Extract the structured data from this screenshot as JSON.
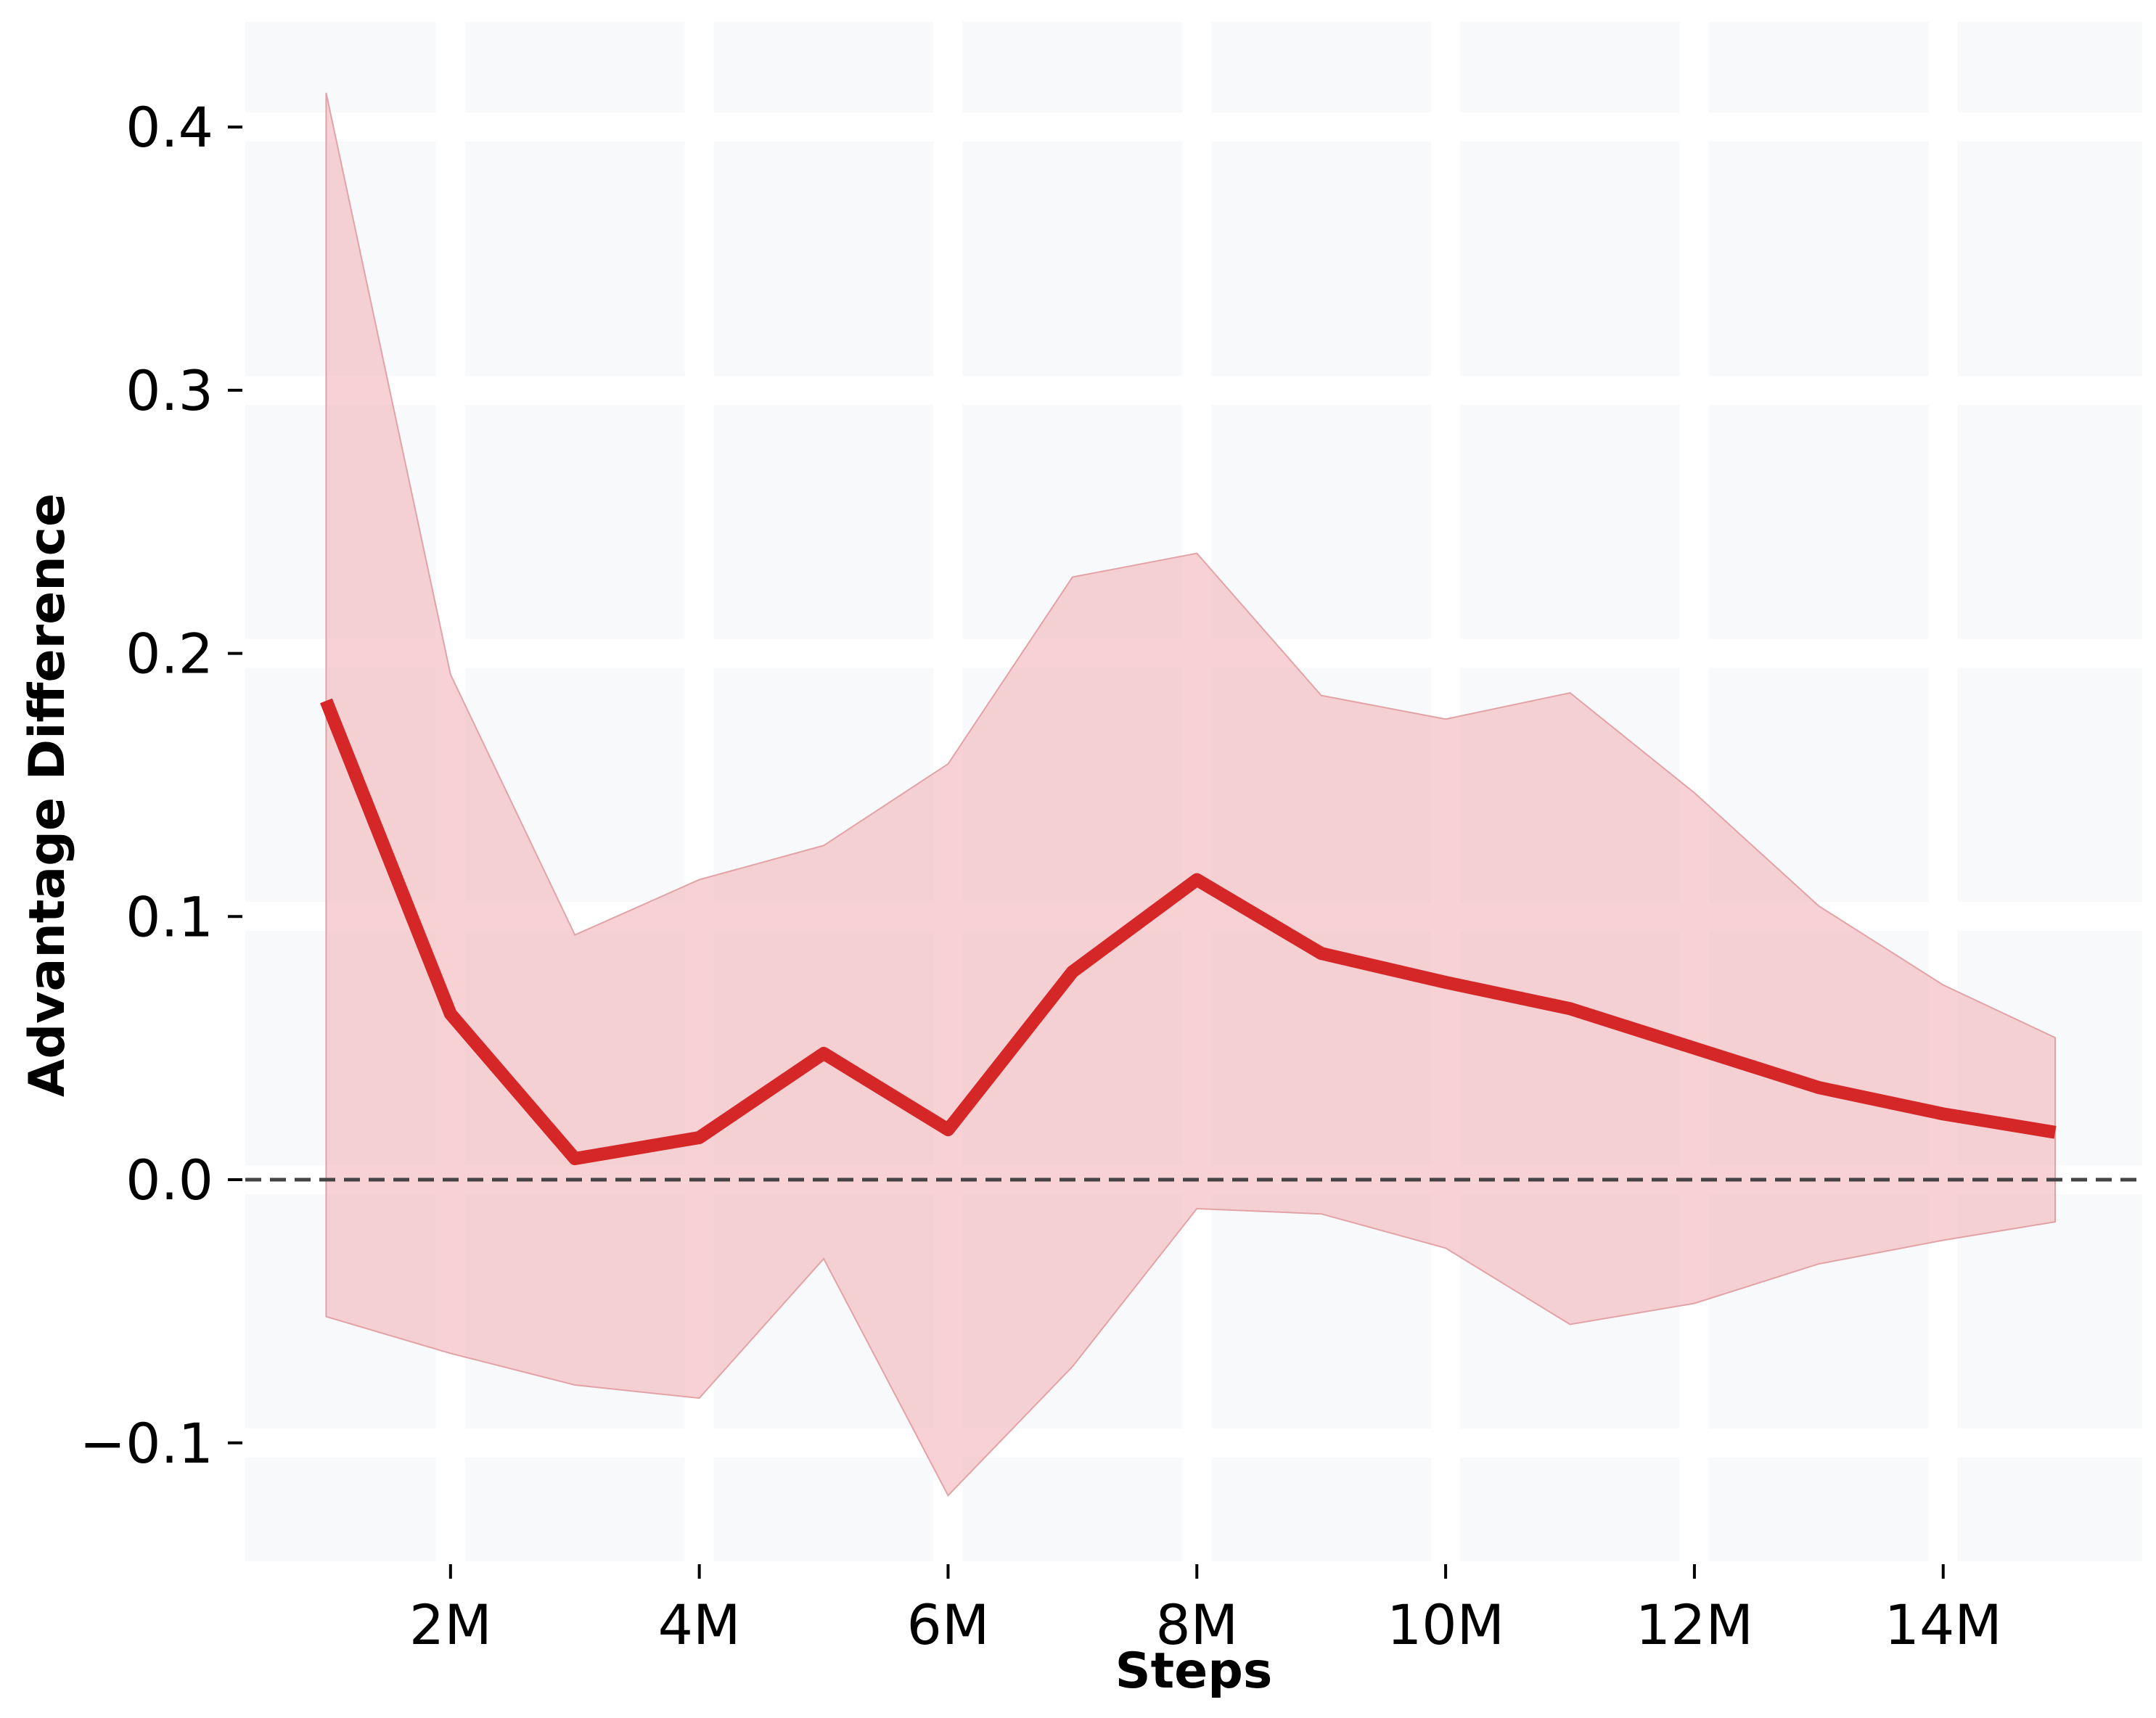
{
  "chart_data": {
    "type": "line",
    "title": "",
    "xlabel": "Steps",
    "ylabel": "Advantage Difference",
    "xlim": [
      0.35,
      15.6
    ],
    "ylim": [
      -0.145,
      0.44
    ],
    "grid": true,
    "legend": "none",
    "x_ticks": [
      {
        "value": 2,
        "label": "2M"
      },
      {
        "value": 4,
        "label": "4M"
      },
      {
        "value": 6,
        "label": "6M"
      },
      {
        "value": 8,
        "label": "8M"
      },
      {
        "value": 10,
        "label": "10M"
      },
      {
        "value": 12,
        "label": "12M"
      },
      {
        "value": 14,
        "label": "14M"
      }
    ],
    "y_ticks": [
      {
        "value": -0.1,
        "label": "−0.1"
      },
      {
        "value": 0.0,
        "label": "0.0"
      },
      {
        "value": 0.1,
        "label": "0.1"
      },
      {
        "value": 0.2,
        "label": "0.2"
      },
      {
        "value": 0.3,
        "label": "0.3"
      },
      {
        "value": 0.4,
        "label": "0.4"
      }
    ],
    "reference_line": {
      "y": 0.0,
      "style": "dashed",
      "color": "#444444"
    },
    "series": [
      {
        "x": [
          1.0,
          2.0,
          3.0,
          4.0,
          5.0,
          6.0,
          7.0,
          8.0,
          9.0,
          10.0,
          11.0,
          12.0,
          13.0,
          14.0,
          14.9
        ],
        "values": [
          0.182,
          0.063,
          0.008,
          0.016,
          0.048,
          0.019,
          0.079,
          0.114,
          0.086,
          0.075,
          0.065,
          0.05,
          0.035,
          0.025,
          0.018
        ],
        "band_upper": [
          0.413,
          0.192,
          0.093,
          0.114,
          0.127,
          0.158,
          0.229,
          0.238,
          0.184,
          0.175,
          0.185,
          0.147,
          0.104,
          0.074,
          0.054
        ],
        "band_lower": [
          -0.052,
          -0.066,
          -0.078,
          -0.083,
          -0.03,
          -0.12,
          -0.071,
          -0.011,
          -0.013,
          -0.026,
          -0.055,
          -0.047,
          -0.032,
          -0.023,
          -0.016
        ],
        "color": "#d62728",
        "band_color": "#f4c2c5"
      }
    ]
  }
}
